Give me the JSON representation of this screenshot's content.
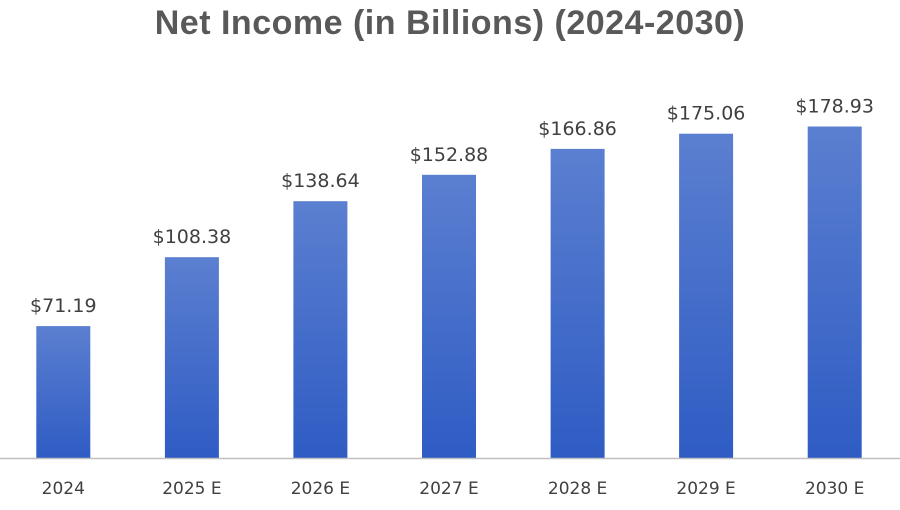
{
  "chart_data": {
    "type": "bar",
    "title": "Net Income (in Billions) (2024-2030)",
    "categories": [
      "2024",
      "2025 E",
      "2026 E",
      "2027 E",
      "2028 E",
      "2029 E",
      "2030 E"
    ],
    "values": [
      71.19,
      108.38,
      138.64,
      152.88,
      166.86,
      175.06,
      178.93
    ],
    "value_labels": [
      "$71.19",
      "$108.38",
      "$138.64",
      "$152.88",
      "$166.86",
      "$175.06",
      "$178.93"
    ],
    "xlabel": "",
    "ylabel": "",
    "ylim": [
      0,
      190
    ],
    "grid": false,
    "legend": "none",
    "colors": {
      "bar_top": "#5b7fd0",
      "bar_bottom": "#2f5cc4",
      "axis": "#bfbfbf"
    }
  }
}
